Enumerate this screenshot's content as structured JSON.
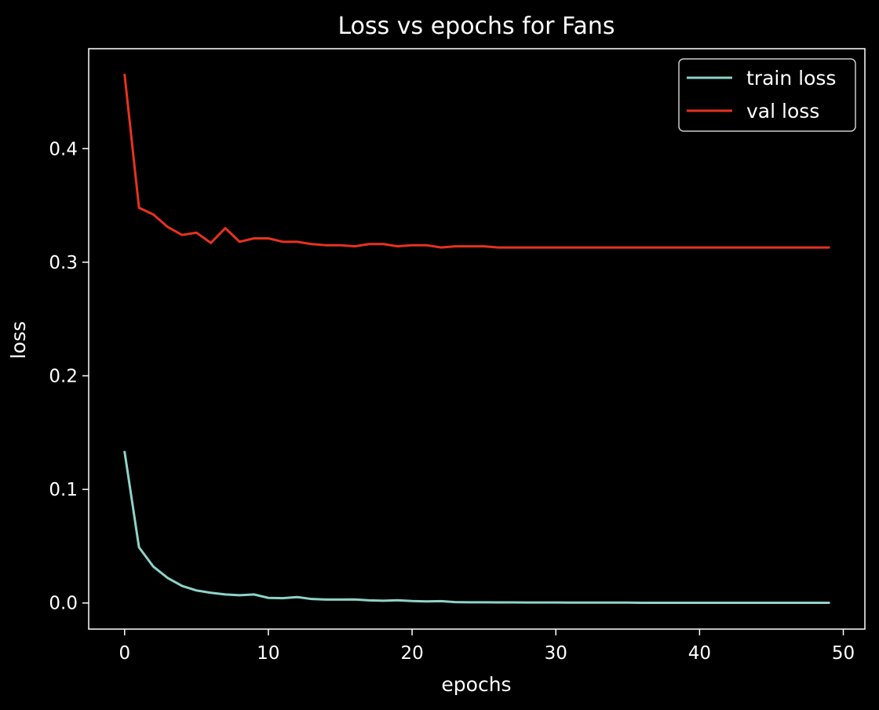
{
  "chart_data": {
    "type": "line",
    "title": "Loss vs epochs for Fans",
    "xlabel": "epochs",
    "ylabel": "loss",
    "xlim": [
      -2.5,
      51.5
    ],
    "ylim": [
      -0.023,
      0.488
    ],
    "xticks": [
      0,
      10,
      20,
      30,
      40,
      50
    ],
    "xtick_labels": [
      "0",
      "10",
      "20",
      "30",
      "40",
      "50"
    ],
    "yticks": [
      0.0,
      0.1,
      0.2,
      0.3,
      0.4
    ],
    "ytick_labels": [
      "0.0",
      "0.1",
      "0.2",
      "0.3",
      "0.4"
    ],
    "grid": false,
    "legend_position": "top-right",
    "background": "#000000",
    "foreground": "#ffffff",
    "x": [
      0,
      1,
      2,
      3,
      4,
      5,
      6,
      7,
      8,
      9,
      10,
      11,
      12,
      13,
      14,
      15,
      16,
      17,
      18,
      19,
      20,
      21,
      22,
      23,
      24,
      25,
      26,
      27,
      28,
      29,
      30,
      31,
      32,
      33,
      34,
      35,
      36,
      37,
      38,
      39,
      40,
      41,
      42,
      43,
      44,
      45,
      46,
      47,
      48,
      49
    ],
    "series": [
      {
        "name": "train loss",
        "color": "#8dd3c7",
        "values": [
          0.133,
          0.049,
          0.032,
          0.022,
          0.015,
          0.011,
          0.009,
          0.0075,
          0.0068,
          0.0075,
          0.0045,
          0.0042,
          0.0052,
          0.0035,
          0.003,
          0.003,
          0.0031,
          0.0023,
          0.002,
          0.0024,
          0.0017,
          0.0014,
          0.0016,
          0.0008,
          0.0006,
          0.0006,
          0.0005,
          0.0005,
          0.0004,
          0.0004,
          0.0004,
          0.0003,
          0.0003,
          0.0003,
          0.0003,
          0.0003,
          0.0002,
          0.0002,
          0.0002,
          0.0002,
          0.0002,
          0.0002,
          0.0002,
          0.0002,
          0.0002,
          0.0002,
          0.0002,
          0.0002,
          0.0002,
          0.0002
        ]
      },
      {
        "name": "val loss",
        "color": "#e8321e",
        "values": [
          0.465,
          0.348,
          0.342,
          0.331,
          0.324,
          0.326,
          0.317,
          0.33,
          0.318,
          0.321,
          0.321,
          0.318,
          0.318,
          0.316,
          0.315,
          0.315,
          0.314,
          0.316,
          0.316,
          0.314,
          0.315,
          0.315,
          0.313,
          0.314,
          0.314,
          0.314,
          0.313,
          0.313,
          0.313,
          0.313,
          0.313,
          0.313,
          0.313,
          0.313,
          0.313,
          0.313,
          0.313,
          0.313,
          0.313,
          0.313,
          0.313,
          0.313,
          0.313,
          0.313,
          0.313,
          0.313,
          0.313,
          0.313,
          0.313,
          0.313
        ]
      }
    ]
  }
}
